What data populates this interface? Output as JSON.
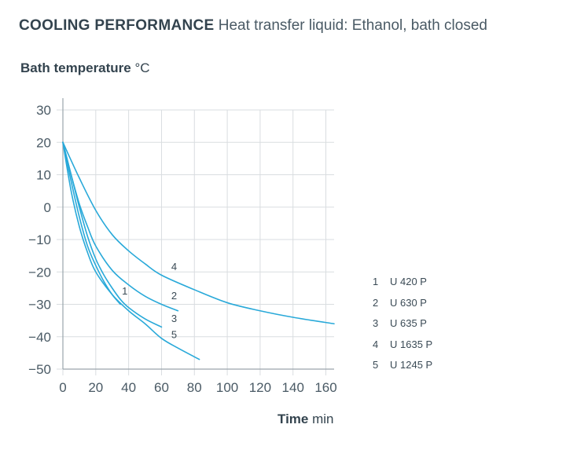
{
  "header": {
    "title": "COOLING PERFORMANCE",
    "subtitle": "Heat transfer liquid: Ethanol, bath closed"
  },
  "axes": {
    "ylabel_bold": "Bath temperature",
    "ylabel_unit": "°C",
    "xlabel_bold": "Time",
    "xlabel_unit": "min"
  },
  "colors": {
    "line": "#29a9d9",
    "grid": "#d9dde0",
    "axis": "#9aa5ac"
  },
  "legend": [
    {
      "num": "1",
      "label": "U 420 P"
    },
    {
      "num": "2",
      "label": "U 630 P"
    },
    {
      "num": "3",
      "label": "U 635 P"
    },
    {
      "num": "4",
      "label": "U 1635 P"
    },
    {
      "num": "5",
      "label": "U 1245 P"
    }
  ],
  "chart_data": {
    "type": "line",
    "title": "COOLING PERFORMANCE",
    "subtitle": "Heat transfer liquid: Ethanol, bath closed",
    "xlabel": "Time min",
    "ylabel": "Bath temperature °C",
    "xlim": [
      0,
      165
    ],
    "ylim": [
      -50,
      30
    ],
    "xticks": [
      0,
      20,
      40,
      60,
      80,
      100,
      120,
      140,
      160
    ],
    "yticks": [
      30,
      20,
      10,
      0,
      -10,
      -20,
      -30,
      -40,
      -50
    ],
    "grid": true,
    "series": [
      {
        "name": "1",
        "label": "U 420 P",
        "x": [
          0,
          5,
          10,
          15,
          20,
          25,
          30,
          35
        ],
        "y": [
          20,
          8,
          -3,
          -12,
          -18,
          -23,
          -27,
          -30
        ]
      },
      {
        "name": "2",
        "label": "U 630 P",
        "x": [
          0,
          5,
          10,
          15,
          20,
          30,
          40,
          50,
          60,
          70
        ],
        "y": [
          20,
          10,
          1,
          -6,
          -12,
          -19.5,
          -24,
          -27.5,
          -30,
          -32
        ]
      },
      {
        "name": "3",
        "label": "U 635 P",
        "x": [
          0,
          5,
          10,
          15,
          20,
          25,
          30,
          35,
          40,
          50,
          60
        ],
        "y": [
          20,
          10,
          0,
          -9,
          -16,
          -21,
          -25,
          -28.5,
          -31,
          -34.5,
          -37
        ]
      },
      {
        "name": "4",
        "label": "U 1635 P",
        "x": [
          0,
          10,
          20,
          30,
          40,
          50,
          60,
          80,
          100,
          120,
          140,
          165
        ],
        "y": [
          20,
          9,
          -1,
          -8.5,
          -13.5,
          -17.5,
          -21,
          -25.5,
          -29.5,
          -32,
          -34,
          -36
        ]
      },
      {
        "name": "5",
        "label": "U 1245 P",
        "x": [
          0,
          5,
          10,
          15,
          20,
          30,
          40,
          50,
          60,
          70,
          83
        ],
        "y": [
          20,
          5,
          -6,
          -14,
          -20,
          -27,
          -32,
          -36,
          -40.5,
          -43.5,
          -47
        ]
      }
    ],
    "annotations": [
      {
        "text": "1",
        "x": 34,
        "y": -26
      },
      {
        "text": "2",
        "x": 64,
        "y": -27.5
      },
      {
        "text": "3",
        "x": 64,
        "y": -34.5
      },
      {
        "text": "4",
        "x": 64,
        "y": -18.5
      },
      {
        "text": "5",
        "x": 64,
        "y": -39.5
      }
    ]
  }
}
